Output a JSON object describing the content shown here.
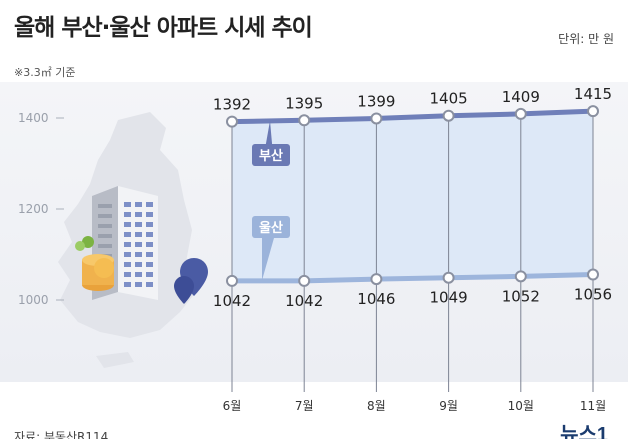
{
  "header": {
    "title": "올해 부산·울산 아파트 시세 추이",
    "unit": "단위: 만 원",
    "note": "※3.3㎡ 기준",
    "source": "자료: 부동산R114",
    "logo": "뉴스1"
  },
  "colors": {
    "busan_line": "#6f7fb9",
    "ulsan_line": "#9db5dc",
    "fill": "#dde8f7",
    "label_busan_bg": "#6a79b4",
    "label_ulsan_bg": "#9bb3da",
    "map": "#e3e5ea",
    "pin": "#4d5fa8"
  },
  "chart_data": {
    "type": "line",
    "categories": [
      "6월",
      "7월",
      "8월",
      "9월",
      "10월",
      "11월"
    ],
    "series": [
      {
        "name": "부산",
        "values": [
          1392,
          1395,
          1399,
          1405,
          1409,
          1415
        ]
      },
      {
        "name": "울산",
        "values": [
          1042,
          1042,
          1046,
          1049,
          1052,
          1056
        ]
      }
    ],
    "yticks": [
      "1400",
      "1200",
      "1000"
    ],
    "ylim": [
      960,
      1440
    ],
    "grid": false
  }
}
